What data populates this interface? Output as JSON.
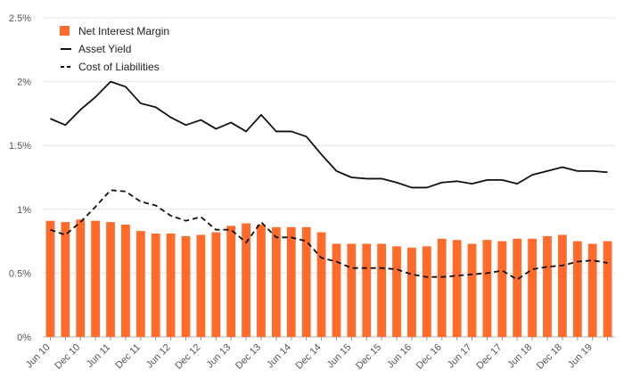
{
  "chart_data": {
    "type": "bar+line",
    "title": "",
    "xlabel": "",
    "ylabel": "",
    "ylim": [
      0,
      2.5
    ],
    "yticks": [
      "0%",
      "0.5%",
      "1%",
      "1.5%",
      "2%",
      "2.5%"
    ],
    "ytick_values": [
      0,
      0.5,
      1,
      1.5,
      2,
      2.5
    ],
    "grid": true,
    "legend_position": "top-left",
    "categories": [
      "Jun 10",
      "Sep 10",
      "Dec 10",
      "Mar 11",
      "Jun 11",
      "Sep 11",
      "Dec 11",
      "Mar 12",
      "Jun 12",
      "Sep 12",
      "Dec 12",
      "Mar 13",
      "Jun 13",
      "Sep 13",
      "Dec 13",
      "Mar 14",
      "Jun 14",
      "Sep 14",
      "Dec 14",
      "Mar 15",
      "Jun 15",
      "Sep 15",
      "Dec 15",
      "Mar 16",
      "Jun 16",
      "Sep 16",
      "Dec 16",
      "Mar 17",
      "Jun 17",
      "Sep 17",
      "Dec 17",
      "Mar 18",
      "Jun 18",
      "Sep 18",
      "Dec 18",
      "Mar 19",
      "Jun 19",
      "Sep 19"
    ],
    "xtick_labels": [
      "Jun 10",
      "Dec 10",
      "Jun 11",
      "Dec 11",
      "Jun 12",
      "Dec 12",
      "Jun 13",
      "Dec 13",
      "Jun 14",
      "Dec 14",
      "Jun 15",
      "Dec 15",
      "Jun 16",
      "Dec 16",
      "Jun 17",
      "Dec 17",
      "Jun 18",
      "Dec 18",
      "Jun 19"
    ],
    "series": [
      {
        "name": "Net Interest Margin",
        "kind": "bar",
        "color": "#ff6b2b",
        "values": [
          0.91,
          0.9,
          0.92,
          0.91,
          0.9,
          0.88,
          0.83,
          0.81,
          0.81,
          0.79,
          0.8,
          0.82,
          0.87,
          0.89,
          0.88,
          0.86,
          0.86,
          0.86,
          0.82,
          0.73,
          0.73,
          0.73,
          0.73,
          0.71,
          0.7,
          0.71,
          0.77,
          0.76,
          0.73,
          0.76,
          0.75,
          0.77,
          0.77,
          0.79,
          0.8,
          0.75,
          0.73,
          0.75
        ]
      },
      {
        "name": "Asset Yield",
        "kind": "line",
        "style": "solid",
        "color": "#111111",
        "values": [
          1.71,
          1.66,
          1.78,
          1.88,
          2.0,
          1.96,
          1.83,
          1.8,
          1.72,
          1.66,
          1.7,
          1.63,
          1.68,
          1.61,
          1.74,
          1.61,
          1.61,
          1.57,
          1.43,
          1.3,
          1.25,
          1.24,
          1.24,
          1.21,
          1.17,
          1.17,
          1.21,
          1.22,
          1.2,
          1.23,
          1.23,
          1.2,
          1.27,
          1.3,
          1.33,
          1.3,
          1.3,
          1.29
        ]
      },
      {
        "name": "Cost of Liabilities",
        "kind": "line",
        "style": "dashed",
        "color": "#111111",
        "values": [
          0.84,
          0.8,
          0.9,
          1.02,
          1.15,
          1.14,
          1.06,
          1.03,
          0.95,
          0.91,
          0.94,
          0.84,
          0.84,
          0.74,
          0.9,
          0.78,
          0.78,
          0.75,
          0.62,
          0.59,
          0.54,
          0.54,
          0.54,
          0.53,
          0.49,
          0.47,
          0.47,
          0.48,
          0.49,
          0.5,
          0.52,
          0.45,
          0.53,
          0.55,
          0.56,
          0.59,
          0.6,
          0.58
        ]
      }
    ]
  }
}
